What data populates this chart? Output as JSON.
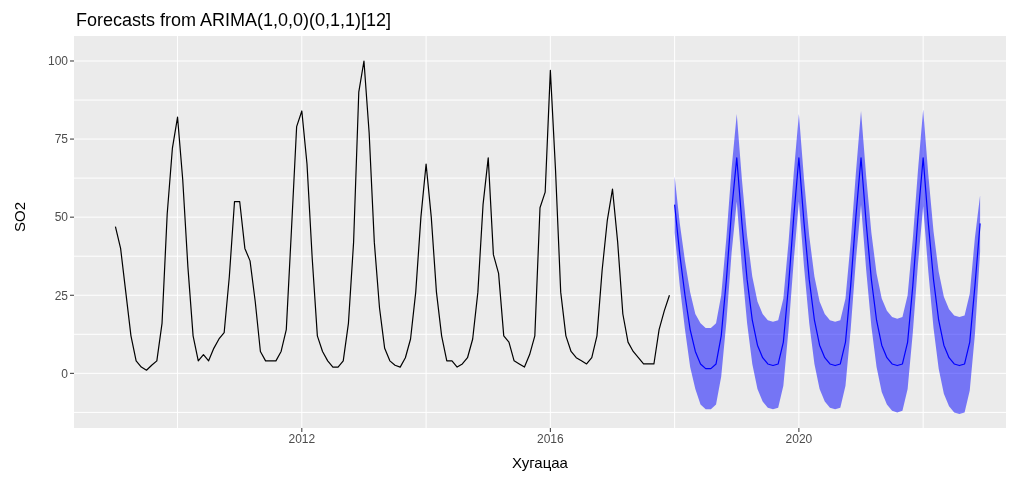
{
  "chart_data": {
    "type": "line",
    "title": "Forecasts from ARIMA(1,0,0)(0,1,1)[12]",
    "xlabel": "Хугацаа",
    "ylabel": "SO2",
    "xlim": [
      "2008-05",
      "2023-05"
    ],
    "xticks": [
      "2012",
      "2016",
      "2020"
    ],
    "ylim": [
      -17.5,
      108
    ],
    "yticks": [
      0,
      25,
      50,
      75,
      100
    ],
    "grid": true,
    "series": [
      {
        "color": "#000000",
        "x": [
          "2009-01",
          "2009-02",
          "2009-03",
          "2009-04",
          "2009-05",
          "2009-06",
          "2009-07",
          "2009-08",
          "2009-09",
          "2009-10",
          "2009-11",
          "2009-12",
          "2010-01",
          "2010-02",
          "2010-03",
          "2010-04",
          "2010-05",
          "2010-06",
          "2010-07",
          "2010-08",
          "2010-09",
          "2010-10",
          "2010-11",
          "2010-12",
          "2011-01",
          "2011-02",
          "2011-03",
          "2011-04",
          "2011-05",
          "2011-06",
          "2011-07",
          "2011-08",
          "2011-09",
          "2011-10",
          "2011-11",
          "2011-12",
          "2012-01",
          "2012-02",
          "2012-03",
          "2012-04",
          "2012-05",
          "2012-06",
          "2012-07",
          "2012-08",
          "2012-09",
          "2012-10",
          "2012-11",
          "2012-12",
          "2013-01",
          "2013-02",
          "2013-03",
          "2013-04",
          "2013-05",
          "2013-06",
          "2013-07",
          "2013-08",
          "2013-09",
          "2013-10",
          "2013-11",
          "2013-12",
          "2014-01",
          "2014-02",
          "2014-03",
          "2014-04",
          "2014-05",
          "2014-06",
          "2014-07",
          "2014-08",
          "2014-09",
          "2014-10",
          "2014-11",
          "2014-12",
          "2015-01",
          "2015-02",
          "2015-03",
          "2015-04",
          "2015-05",
          "2015-06",
          "2015-07",
          "2015-08",
          "2015-09",
          "2015-10",
          "2015-11",
          "2015-12",
          "2016-01",
          "2016-02",
          "2016-03",
          "2016-04",
          "2016-05",
          "2016-06",
          "2016-07",
          "2016-08",
          "2016-09",
          "2016-10",
          "2016-11",
          "2016-12",
          "2017-01",
          "2017-02",
          "2017-03",
          "2017-04",
          "2017-05",
          "2017-06",
          "2017-07",
          "2017-08",
          "2017-09",
          "2017-10",
          "2017-11",
          "2017-12"
        ],
        "values": [
          47,
          40,
          26,
          12,
          4,
          2,
          1,
          2.6,
          4,
          16,
          51,
          72,
          82,
          62,
          34,
          12,
          4,
          6,
          4,
          8,
          11,
          13,
          31,
          55,
          55,
          40,
          36,
          23,
          7,
          4,
          4,
          4,
          7,
          14,
          46,
          79,
          84,
          67,
          37,
          12,
          7,
          4,
          2,
          2,
          4,
          16,
          42,
          90,
          100,
          77,
          42,
          21,
          8,
          4,
          2.6,
          2,
          5,
          11,
          26,
          50,
          67,
          50,
          26,
          12,
          4,
          4,
          2,
          3,
          5,
          11,
          26,
          54,
          69,
          38,
          32,
          12,
          10,
          4,
          3,
          2,
          6,
          12,
          53,
          58,
          97,
          65,
          26,
          12,
          7,
          5,
          4,
          3,
          5,
          12,
          33,
          49,
          59,
          42,
          19,
          10,
          7,
          5,
          3,
          3,
          3,
          14,
          20,
          25
        ]
      },
      {
        "color": "#0000ff",
        "x": [
          "2018-01",
          "2018-02",
          "2018-03",
          "2018-04",
          "2018-05",
          "2018-06",
          "2018-07",
          "2018-08",
          "2018-09",
          "2018-10",
          "2018-11",
          "2018-12",
          "2019-01",
          "2019-02",
          "2019-03",
          "2019-04",
          "2019-05",
          "2019-06",
          "2019-07",
          "2019-08",
          "2019-09",
          "2019-10",
          "2019-11",
          "2019-12",
          "2020-01",
          "2020-02",
          "2020-03",
          "2020-04",
          "2020-05",
          "2020-06",
          "2020-07",
          "2020-08",
          "2020-09",
          "2020-10",
          "2020-11",
          "2020-12",
          "2021-01",
          "2021-02",
          "2021-03",
          "2021-04",
          "2021-05",
          "2021-06",
          "2021-07",
          "2021-08",
          "2021-09",
          "2021-10",
          "2021-11",
          "2021-12",
          "2022-01",
          "2022-02",
          "2022-03",
          "2022-04",
          "2022-05",
          "2022-06",
          "2022-07",
          "2022-08",
          "2022-09",
          "2022-10",
          "2022-11",
          "2022-12"
        ],
        "values": [
          54,
          38,
          25,
          14,
          7,
          3,
          1.5,
          1.5,
          3,
          12,
          30,
          52,
          69,
          48,
          30,
          17,
          9,
          5,
          3,
          2.5,
          3,
          10,
          28,
          50,
          69,
          48,
          30,
          17,
          9,
          5,
          3,
          2.5,
          3,
          10,
          28,
          50,
          69,
          48,
          30,
          17,
          9,
          5,
          3,
          2.5,
          3,
          10,
          28,
          50,
          69,
          48,
          30,
          17,
          9,
          5,
          3,
          2.5,
          3,
          10,
          28,
          48
        ],
        "upper": [
          63,
          48,
          36,
          26,
          19,
          16,
          14.5,
          14.5,
          16,
          25,
          43.5,
          65.5,
          83,
          62,
          44,
          31,
          23,
          19,
          17,
          16.5,
          17,
          24,
          42,
          64,
          83,
          62,
          44,
          31,
          23,
          19,
          17,
          16.5,
          17,
          24,
          42,
          64,
          84,
          63,
          45,
          32,
          24,
          20,
          18,
          17.5,
          18,
          25,
          43,
          65,
          84.5,
          63.5,
          45.5,
          32.5,
          24.5,
          20.5,
          18.5,
          18,
          18.5,
          25.5,
          43.5,
          57
        ],
        "lower": [
          45,
          28,
          14,
          2,
          -5,
          -10,
          -11.5,
          -11.5,
          -10,
          -1,
          16.5,
          38.5,
          55,
          34,
          16,
          3,
          -5,
          -9,
          -11,
          -11.5,
          -11,
          -4,
          14,
          36,
          55,
          34,
          16,
          3,
          -5,
          -9,
          -11,
          -11.5,
          -11,
          -4,
          14,
          36,
          54,
          33,
          15,
          2,
          -6,
          -10,
          -12,
          -12.5,
          -12,
          -5,
          13,
          35,
          53.5,
          32.5,
          14.5,
          1.5,
          -6.5,
          -10.5,
          -12.5,
          -13,
          -12.5,
          -5.5,
          12.5,
          39
        ]
      }
    ]
  }
}
